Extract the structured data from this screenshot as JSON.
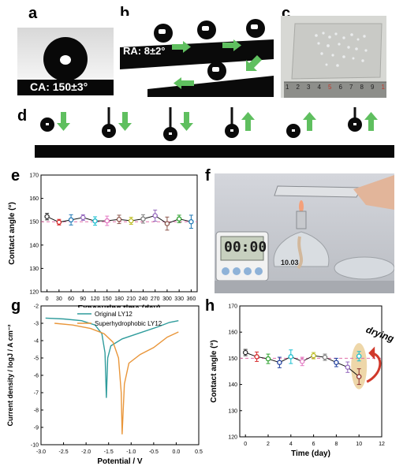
{
  "panels": {
    "a": {
      "label": "a",
      "text": "CA: 150±3°"
    },
    "b": {
      "label": "b",
      "text": "RA: 8±2°"
    },
    "c": {
      "label": "c",
      "ruler_digits": [
        "1",
        "2",
        "3",
        "4",
        "5",
        "6",
        "7",
        "8",
        "9",
        "1"
      ]
    },
    "d": {
      "label": "d",
      "arrows": [
        "down",
        "down",
        "down",
        "up",
        "up",
        "up"
      ]
    },
    "e": {
      "label": "e"
    },
    "f": {
      "label": "f",
      "timer_text": "00:00",
      "timer_text2": "10.03"
    },
    "g": {
      "label": "g"
    },
    "h": {
      "label": "h",
      "annotation": "drying"
    }
  },
  "colors": {
    "accent_green": "#5fbf5f",
    "accent_orange": "#e9963a",
    "accent_teal": "#2f9c9c",
    "dashed_line": "#e06fa8"
  },
  "chart_data": [
    {
      "id": "e",
      "type": "scatter",
      "xlabel": "Exposuring time (day)",
      "ylabel": "Contact angle (°)",
      "xlim": [
        -15,
        375
      ],
      "ylim": [
        120,
        170
      ],
      "xticks": [
        0,
        30,
        60,
        90,
        120,
        150,
        180,
        210,
        240,
        270,
        300,
        330,
        360
      ],
      "yticks": [
        120,
        130,
        140,
        150,
        160,
        170
      ],
      "reference_line": 150,
      "x": [
        0,
        30,
        60,
        90,
        120,
        150,
        180,
        210,
        240,
        270,
        300,
        330,
        360
      ],
      "y": [
        152.2,
        149.8,
        150.8,
        151.8,
        150.3,
        150.4,
        151.0,
        150.4,
        151.2,
        152.6,
        149.2,
        151.2,
        150.0
      ],
      "err": [
        1.4,
        1.2,
        2.2,
        1.2,
        1.8,
        2.0,
        1.8,
        1.5,
        1.8,
        2.4,
        2.8,
        1.6,
        2.8
      ],
      "point_colors": [
        "#333333",
        "#d62728",
        "#1f77b4",
        "#9467bd",
        "#17becf",
        "#e377c2",
        "#8c564b",
        "#bcbd22",
        "#7f7f7f",
        "#9467bd",
        "#8c564b",
        "#2ca02c",
        "#1f77b4"
      ]
    },
    {
      "id": "g",
      "type": "line",
      "xlabel": "Potential / V",
      "ylabel": "Current density / logJ / A cm⁻²",
      "xlim": [
        -3.0,
        0.5
      ],
      "ylim": [
        -10,
        -2
      ],
      "xticks": [
        -3.0,
        -2.5,
        -2.0,
        -1.5,
        -1.0,
        -0.5,
        0.0,
        0.5
      ],
      "yticks": [
        -2,
        -3,
        -4,
        -5,
        -6,
        -7,
        -8,
        -9,
        -10
      ],
      "series": [
        {
          "name": "Original LY12",
          "color": "#2f9c9c",
          "x": [
            -2.9,
            -2.5,
            -2.1,
            -1.8,
            -1.65,
            -1.58,
            -1.55,
            -1.52,
            -1.45,
            -1.2,
            -0.8,
            -0.4,
            -0.15,
            0.05
          ],
          "y": [
            -2.7,
            -2.75,
            -2.85,
            -3.1,
            -3.6,
            -4.7,
            -7.3,
            -5.0,
            -4.3,
            -3.9,
            -3.55,
            -3.2,
            -2.95,
            -2.85
          ]
        },
        {
          "name": "Superhydrophobic LY12",
          "color": "#e9963a",
          "x": [
            -2.7,
            -2.3,
            -1.9,
            -1.6,
            -1.4,
            -1.28,
            -1.22,
            -1.2,
            -1.15,
            -1.05,
            -0.8,
            -0.5,
            -0.2,
            0.05
          ],
          "y": [
            -3.0,
            -3.1,
            -3.3,
            -3.6,
            -4.1,
            -5.0,
            -7.0,
            -9.4,
            -6.5,
            -5.3,
            -4.8,
            -4.4,
            -3.8,
            -3.5
          ]
        }
      ]
    },
    {
      "id": "h",
      "type": "scatter",
      "xlabel": "Time (day)",
      "ylabel": "Contact angle (°)",
      "xlim": [
        -0.5,
        12
      ],
      "ylim": [
        120,
        170
      ],
      "xticks": [
        0,
        2,
        4,
        6,
        8,
        10,
        12
      ],
      "yticks": [
        120,
        130,
        140,
        150,
        160,
        170
      ],
      "reference_line": 150,
      "x": [
        0,
        1,
        2,
        3,
        4,
        5,
        6,
        7,
        8,
        9,
        10
      ],
      "y": [
        152.2,
        150.6,
        149.8,
        148.4,
        150.6,
        148.8,
        151.0,
        150.4,
        148.4,
        146.6,
        143.0
      ],
      "err": [
        1.2,
        1.8,
        1.8,
        2.0,
        2.6,
        1.6,
        1.2,
        1.2,
        1.6,
        2.0,
        3.0
      ],
      "point_colors": [
        "#333333",
        "#d62728",
        "#2ca02c",
        "#1f3f9f",
        "#17becf",
        "#e377c2",
        "#bcbd22",
        "#7f7f7f",
        "#1f3f9f",
        "#9467bd",
        "#8c2f2f"
      ],
      "recovered": {
        "x": 10,
        "y": 150.8,
        "err": 1.8,
        "color": "#17becf"
      }
    }
  ]
}
